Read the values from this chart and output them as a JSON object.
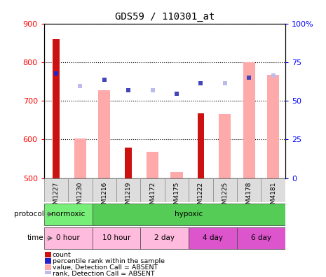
{
  "title": "GDS59 / 110301_at",
  "samples": [
    "GSM1227",
    "GSM1230",
    "GSM1216",
    "GSM1219",
    "GSM4172",
    "GSM4175",
    "GSM1222",
    "GSM1225",
    "GSM4178",
    "GSM4181"
  ],
  "count_values": [
    860,
    null,
    null,
    578,
    null,
    null,
    668,
    null,
    null,
    null
  ],
  "rank_values": [
    770,
    null,
    null,
    null,
    null,
    null,
    null,
    null,
    null,
    null
  ],
  "value_absent": [
    null,
    603,
    728,
    null,
    568,
    515,
    null,
    665,
    800,
    768
  ],
  "rank_absent_light": [
    null,
    738,
    null,
    null,
    728,
    null,
    null,
    745,
    null,
    765
  ],
  "rank_absent_dark": [
    null,
    null,
    754,
    728,
    null,
    718,
    745,
    null,
    760,
    null
  ],
  "ylim_left": [
    500,
    900
  ],
  "ylim_right": [
    0,
    100
  ],
  "yticks_left": [
    500,
    600,
    700,
    800,
    900
  ],
  "yticks_right": [
    0,
    25,
    50,
    75,
    100
  ],
  "bar_color_count": "#cc1111",
  "bar_color_value_absent": "#ffaaaa",
  "dot_color_rank_light": "#bbbbee",
  "dot_color_rank_dark": "#4444bb",
  "dot_color_rank_gsm1227": "#2222cc",
  "norm_color": "#77ee77",
  "hypo_color": "#55cc55",
  "time_color_light": "#ffbbdd",
  "time_color_dark": "#dd66cc",
  "grid_color": "#888888",
  "tg_starts": [
    0,
    2,
    4,
    6,
    8
  ],
  "tg_widths": [
    2,
    2,
    2,
    2,
    2
  ],
  "tg_labels": [
    "0 hour",
    "10 hour",
    "2 day",
    "4 day",
    "6 day"
  ],
  "tg_colors": [
    "#ffbbdd",
    "#ffbbdd",
    "#ffbbdd",
    "#dd55cc",
    "#dd55cc"
  ],
  "legend_items": [
    {
      "label": "count",
      "color": "#cc1111"
    },
    {
      "label": "percentile rank within the sample",
      "color": "#2222cc"
    },
    {
      "label": "value, Detection Call = ABSENT",
      "color": "#ffaaaa"
    },
    {
      "label": "rank, Detection Call = ABSENT",
      "color": "#bbbbee"
    }
  ]
}
